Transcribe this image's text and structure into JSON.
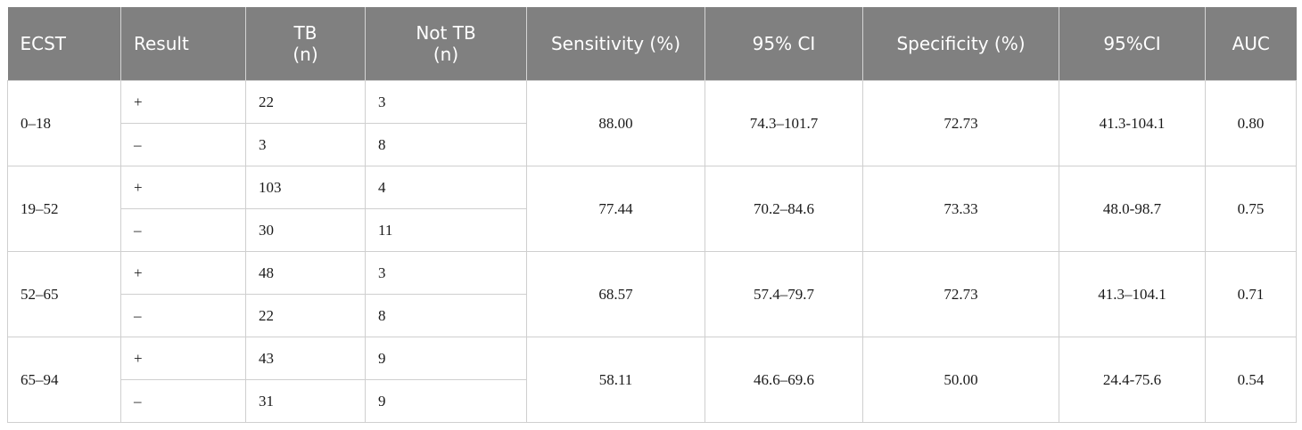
{
  "table": {
    "headers": [
      {
        "lines": [
          "ECST"
        ]
      },
      {
        "lines": [
          "Result"
        ]
      },
      {
        "lines": [
          "TB",
          "(n)"
        ]
      },
      {
        "lines": [
          "Not TB",
          "(n)"
        ]
      },
      {
        "lines": [
          "Sensitivity (%)"
        ]
      },
      {
        "lines": [
          "95% CI"
        ]
      },
      {
        "lines": [
          "Specificity (%)"
        ]
      },
      {
        "lines": [
          "95%CI"
        ]
      },
      {
        "lines": [
          "AUC"
        ]
      }
    ],
    "groups": [
      {
        "ecst": "0–18",
        "rows": [
          {
            "result": "+",
            "tb": "22",
            "not_tb": "3"
          },
          {
            "result": "–",
            "tb": "3",
            "not_tb": "8"
          }
        ],
        "sensitivity": "88.00",
        "ci_sensitivity": "74.3–101.7",
        "specificity": "72.73",
        "ci_specificity": "41.3-104.1",
        "auc": "0.80"
      },
      {
        "ecst": "19–52",
        "rows": [
          {
            "result": "+",
            "tb": "103",
            "not_tb": "4"
          },
          {
            "result": "–",
            "tb": "30",
            "not_tb": "11"
          }
        ],
        "sensitivity": "77.44",
        "ci_sensitivity": "70.2–84.6",
        "specificity": "73.33",
        "ci_specificity": "48.0-98.7",
        "auc": "0.75"
      },
      {
        "ecst": "52–65",
        "rows": [
          {
            "result": "+",
            "tb": "48",
            "not_tb": "3"
          },
          {
            "result": "–",
            "tb": "22",
            "not_tb": "8"
          }
        ],
        "sensitivity": "68.57",
        "ci_sensitivity": "57.4–79.7",
        "specificity": "72.73",
        "ci_specificity": "41.3–104.1",
        "auc": "0.71"
      },
      {
        "ecst": "65–94",
        "rows": [
          {
            "result": "+",
            "tb": "43",
            "not_tb": "9"
          },
          {
            "result": "–",
            "tb": "31",
            "not_tb": "9"
          }
        ],
        "sensitivity": "58.11",
        "ci_sensitivity": "46.6–69.6",
        "specificity": "50.00",
        "ci_specificity": "24.4-75.6",
        "auc": "0.54"
      }
    ]
  }
}
